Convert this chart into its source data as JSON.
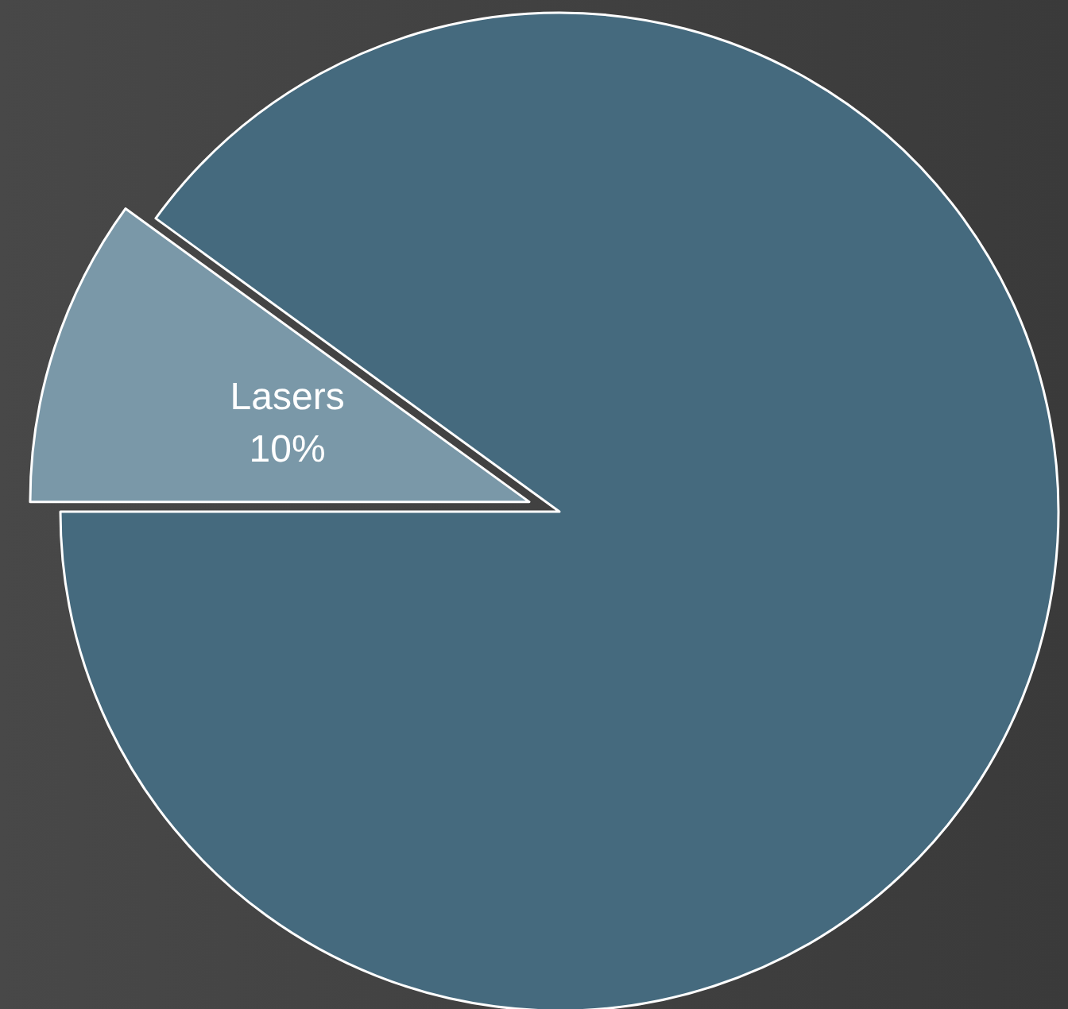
{
  "chart_data": {
    "type": "pie",
    "categories": [
      "Lasers",
      null
    ],
    "values": [
      10,
      90
    ],
    "colors": [
      "#7a98a8",
      "#456a7e"
    ],
    "value_labels": [
      "10%",
      null
    ]
  }
}
